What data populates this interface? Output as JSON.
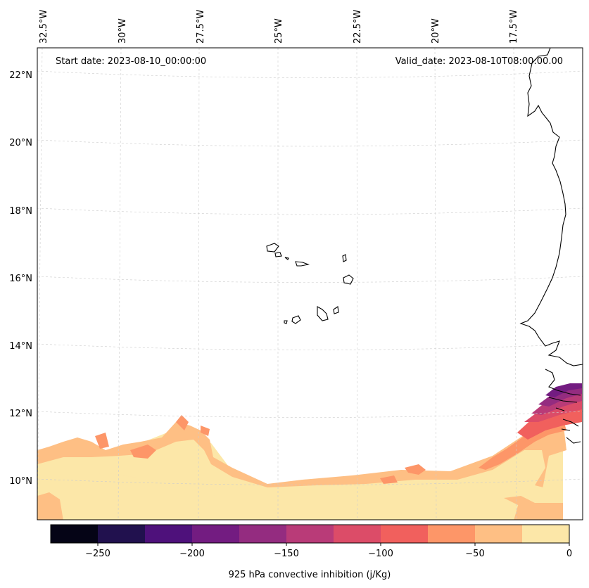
{
  "header": {
    "start_date": "Start date: 2023-08-10_00:00:00",
    "valid_date": "Valid_date: 2023-08-10T08:00:00.00"
  },
  "map": {
    "lon_labels": [
      "32.5°W",
      "30°W",
      "27.5°W",
      "25°W",
      "22.5°W",
      "20°W",
      "17.5°W"
    ],
    "lat_labels": [
      "22°N",
      "20°N",
      "18°N",
      "16°N",
      "14°N",
      "12°N",
      "10°N"
    ],
    "colors": {
      "coast": "#000000",
      "grid": "#cccccc",
      "frame": "#000000"
    }
  },
  "colorbar": {
    "label": "925 hPa convective inhibition (j/Kg)",
    "tick_labels": [
      "−250",
      "−200",
      "−150",
      "−100",
      "−50",
      "0"
    ],
    "range": [
      -275,
      0
    ],
    "colors": [
      "#050416",
      "#21114e",
      "#4e117b",
      "#731c81",
      "#942c80",
      "#b93b78",
      "#dc4c68",
      "#f1605d",
      "#fd9668",
      "#febf84",
      "#fce7a8"
    ]
  }
}
